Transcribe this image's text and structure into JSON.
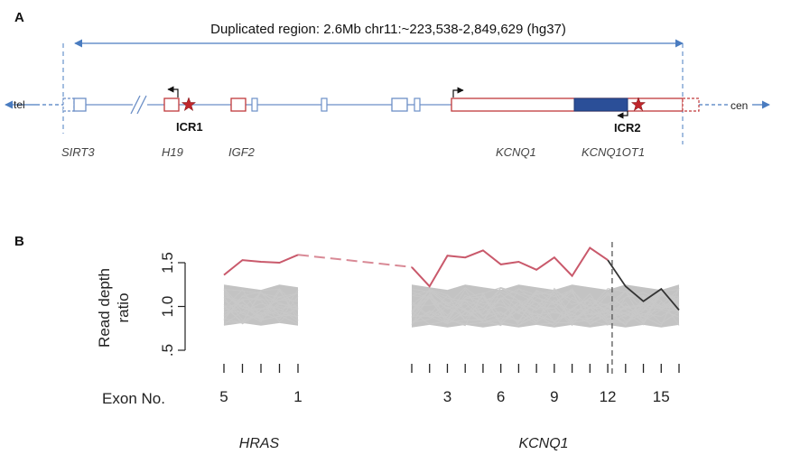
{
  "panelA": {
    "label": "A",
    "duplicated_region": "Duplicated region: 2.6Mb chr11:~223,538-2,849,629 (hg37)",
    "tel": "tel",
    "cen": "cen",
    "icr1": "ICR1",
    "icr2": "ICR2",
    "genes": [
      "SIRT3",
      "H19",
      "IGF2",
      "KCNQ1",
      "KCNQ1OT1"
    ]
  },
  "panelB": {
    "label": "B",
    "ylabel_line1": "Read depth",
    "ylabel_line2": "ratio",
    "xlabel": "Exon No.",
    "left_gene": "HRAS",
    "right_gene": "KCNQ1"
  },
  "chart_data": {
    "type": "line",
    "ylabel": "Read depth ratio",
    "xlabel": "Exon No.",
    "yticks": [
      "1.5",
      "1.0",
      ".5"
    ],
    "ylim": [
      0.5,
      1.5
    ],
    "grid": false,
    "colors": {
      "patient_dup": "#c9596b",
      "patient_normal": "#333333",
      "controls": "#b8b8b8",
      "boundary": "#555555"
    },
    "segments": [
      {
        "gene": "HRAS",
        "exons": [
          5,
          4,
          3,
          2,
          1
        ],
        "tick_labels": [
          "5",
          "1"
        ],
        "patient": [
          1.36,
          1.53,
          1.51,
          1.5,
          1.59
        ],
        "control_band": [
          0.78,
          1.22
        ]
      },
      {
        "gene": "KCNQ1",
        "exons": [
          1,
          2,
          3,
          4,
          5,
          6,
          7,
          8,
          9,
          10,
          11,
          12,
          13,
          14,
          15,
          16
        ],
        "tick_labels": [
          "3",
          "6",
          "9",
          "12",
          "15"
        ],
        "patient": [
          1.45,
          1.23,
          1.58,
          1.56,
          1.64,
          1.48,
          1.51,
          1.42,
          1.56,
          1.35,
          1.67,
          1.53,
          1.23,
          1.06,
          1.2,
          0.96
        ],
        "duplication_ends_after_exon": 12,
        "control_band": [
          0.76,
          1.22
        ]
      }
    ]
  }
}
